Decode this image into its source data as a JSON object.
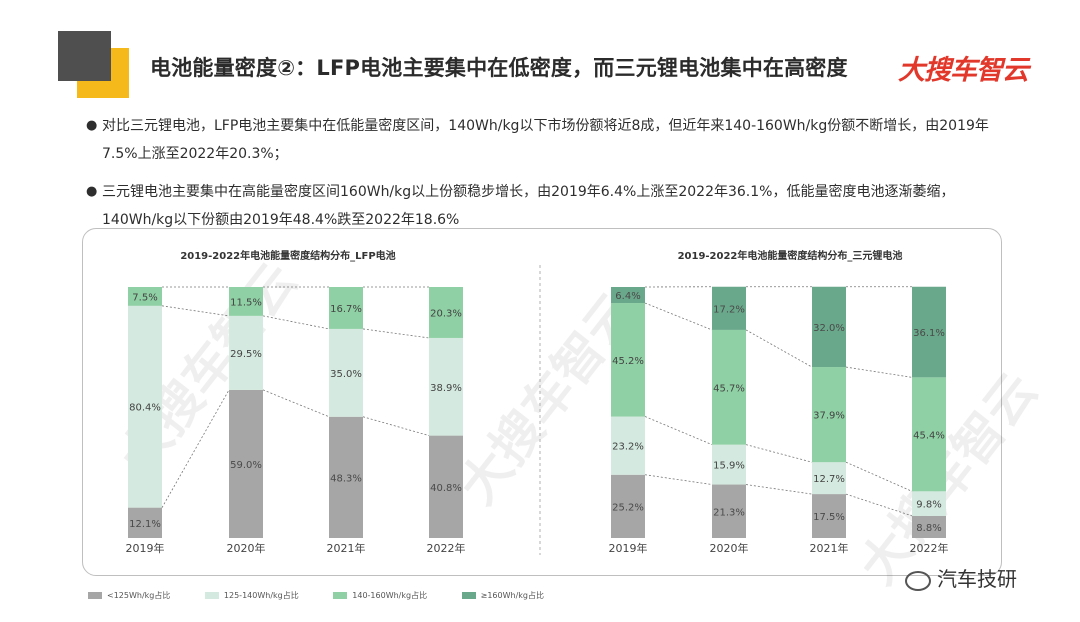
{
  "header": {
    "title": "电池能量密度②：LFP电池主要集中在低密度，而三元锂电池集中在高密度",
    "logo_text": "大搜车智云"
  },
  "bullets": [
    {
      "text": "对比三元锂电池，LFP电池主要集中在低能量密度区间，140Wh/kg以下市场份额将近8成，但近年来140-160Wh/kg份额不断增长，由2019年7.5%上涨至2022年20.3%；"
    },
    {
      "text": "三元锂电池主要集中在高能量密度区间160Wh/kg以上份额稳步增长，由2019年6.4%上涨至2022年36.1%，低能量密度电池逐渐萎缩，140Wh/kg以下份额由2019年48.4%跌至2022年18.6%"
    }
  ],
  "legend": [
    {
      "label": "<125Wh/kg占比",
      "color": "#a6a6a6"
    },
    {
      "label": "125-140Wh/kg占比",
      "color": "#d4e9df"
    },
    {
      "label": "140-160Wh/kg占比",
      "color": "#8fd0a4"
    },
    {
      "label": "≥160Wh/kg占比",
      "color": "#6aa88b"
    }
  ],
  "watermark_text": "大搜车智云",
  "wechat": {
    "label": "汽车技研"
  },
  "chart_data": [
    {
      "type": "bar",
      "stacked": true,
      "title": "2019-2022年电池能量密度结构分布_LFP电池",
      "categories": [
        "2019年",
        "2020年",
        "2021年",
        "2022年"
      ],
      "ylim": [
        0,
        100
      ],
      "series": [
        {
          "name": "<125Wh/kg占比",
          "color": "#a6a6a6",
          "values": [
            12.1,
            59.0,
            48.3,
            40.8
          ],
          "labels": [
            "12.1%",
            "59.0%",
            "48.3%",
            "40.8%"
          ]
        },
        {
          "name": "125-140Wh/kg占比",
          "color": "#d4e9df",
          "values": [
            80.4,
            29.5,
            35.0,
            38.9
          ],
          "labels": [
            "80.4%",
            "29.5%",
            "35.0%",
            "38.9%"
          ]
        },
        {
          "name": "140-160Wh/kg占比",
          "color": "#8fd0a4",
          "values": [
            7.5,
            11.5,
            16.7,
            20.3
          ],
          "labels": [
            "7.5%",
            "11.5%",
            "16.7%",
            "20.3%"
          ]
        }
      ]
    },
    {
      "type": "bar",
      "stacked": true,
      "title": "2019-2022年电池能量密度结构分布_三元锂电池",
      "categories": [
        "2019年",
        "2020年",
        "2021年",
        "2022年"
      ],
      "ylim": [
        0,
        100
      ],
      "series": [
        {
          "name": "<125Wh/kg占比",
          "color": "#a6a6a6",
          "values": [
            25.2,
            21.3,
            17.5,
            8.8
          ],
          "labels": [
            "25.2%",
            "21.3%",
            "17.5%",
            "8.8%"
          ]
        },
        {
          "name": "125-140Wh/kg占比",
          "color": "#d4e9df",
          "values": [
            23.2,
            15.9,
            12.7,
            9.8
          ],
          "labels": [
            "23.2%",
            "15.9%",
            "12.7%",
            "9.8%"
          ]
        },
        {
          "name": "140-160Wh/kg占比",
          "color": "#8fd0a4",
          "values": [
            45.2,
            45.7,
            37.9,
            45.4
          ],
          "labels": [
            "45.2%",
            "45.7%",
            "37.9%",
            "45.4%"
          ]
        },
        {
          "name": "≥160Wh/kg占比",
          "color": "#6aa88b",
          "values": [
            6.4,
            17.2,
            32.0,
            36.1
          ],
          "labels": [
            "6.4%",
            "17.2%",
            "32.0%",
            "36.1%"
          ]
        }
      ]
    }
  ]
}
